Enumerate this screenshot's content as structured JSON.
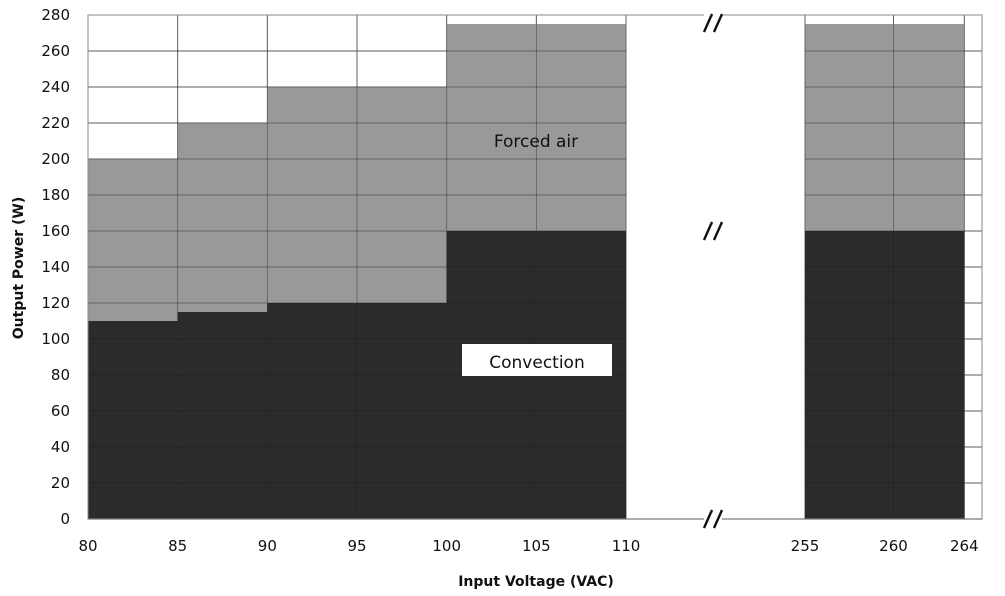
{
  "chart_data": {
    "type": "area",
    "xlabel": "Input Voltage (VAC)",
    "ylabel": "Output Power (W)",
    "ylim": [
      0,
      280
    ],
    "y_ticks": [
      "0",
      "20",
      "40",
      "60",
      "80",
      "100",
      "120",
      "140",
      "160",
      "180",
      "200",
      "220",
      "240",
      "260",
      "280"
    ],
    "x_ticks": [
      "80",
      "85",
      "90",
      "95",
      "100",
      "105",
      "110",
      "255",
      "260",
      "264"
    ],
    "axis_break": "between 110 and 255",
    "grid": true,
    "series": [
      {
        "name": "Convection",
        "color": "#2b2b2b",
        "segments": [
          {
            "x_from": 80,
            "x_to": 85,
            "value": 110
          },
          {
            "x_from": 85,
            "x_to": 90,
            "value": 115
          },
          {
            "x_from": 90,
            "x_to": 95,
            "value": 120
          },
          {
            "x_from": 95,
            "x_to": 100,
            "value": 120
          },
          {
            "x_from": 100,
            "x_to": 105,
            "value": 160
          },
          {
            "x_from": 105,
            "x_to": 110,
            "value": 160
          },
          {
            "x_from": 255,
            "x_to": 260,
            "value": 160
          },
          {
            "x_from": 260,
            "x_to": 264,
            "value": 160
          }
        ]
      },
      {
        "name": "Forced air",
        "color": "#999999",
        "segments": [
          {
            "x_from": 80,
            "x_to": 85,
            "value": 200
          },
          {
            "x_from": 85,
            "x_to": 90,
            "value": 220
          },
          {
            "x_from": 90,
            "x_to": 95,
            "value": 240
          },
          {
            "x_from": 95,
            "x_to": 100,
            "value": 240
          },
          {
            "x_from": 100,
            "x_to": 105,
            "value": 275
          },
          {
            "x_from": 105,
            "x_to": 110,
            "value": 275
          },
          {
            "x_from": 255,
            "x_to": 260,
            "value": 275
          },
          {
            "x_from": 260,
            "x_to": 264,
            "value": 275
          }
        ]
      }
    ]
  }
}
